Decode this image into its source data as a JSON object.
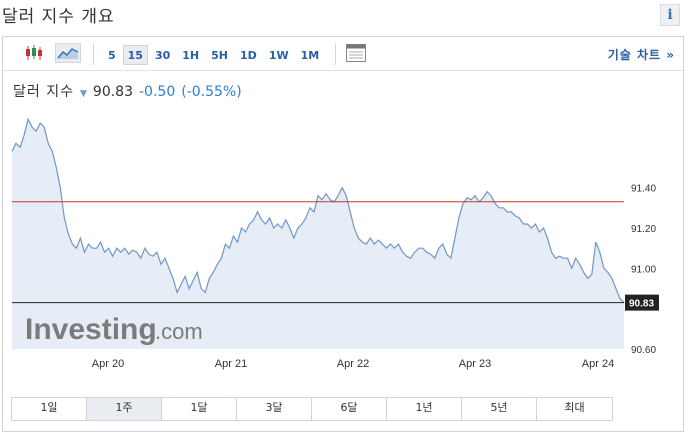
{
  "header": {
    "title": "달러 지수 개요",
    "info_label": "i"
  },
  "toolbar": {
    "chart_type_icons": [
      "candlestick-icon",
      "area-chart-icon"
    ],
    "intervals": [
      "5",
      "15",
      "30",
      "1H",
      "5H",
      "1D",
      "1W",
      "1M"
    ],
    "active_interval": "15",
    "calendar_icon": "calendar-icon",
    "tech_chart_link": "기술 차트 »"
  },
  "quote": {
    "name": "달러 지수",
    "price": "90.83",
    "change": "-0.50",
    "change_pct": "(-0.55%)"
  },
  "watermark": {
    "brand": "Investing",
    "suffix": ".com"
  },
  "chart_data": {
    "type": "area",
    "x_labels": [
      "Apr 20",
      "Apr 21",
      "Apr 22",
      "Apr 23",
      "Apr 24"
    ],
    "y_ticks": [
      "91.40",
      "91.20",
      "91.00",
      "90.60"
    ],
    "ylim": [
      90.6,
      91.8
    ],
    "last_value_label": "90.83",
    "last_value": 90.83,
    "reference_line": 91.33,
    "grid": false,
    "colors": {
      "line": "#6f97c8",
      "fill": "#e6edf6",
      "reference": "#c0392b",
      "last": "#222222"
    },
    "series": [
      {
        "values": [
          91.58,
          91.62,
          91.6,
          91.66,
          91.74,
          91.7,
          91.68,
          91.72,
          91.7,
          91.62,
          91.58,
          91.5,
          91.4,
          91.25,
          91.17,
          91.12,
          91.1,
          91.15,
          91.08,
          91.12,
          91.1,
          91.1,
          91.13,
          91.08,
          91.1,
          91.06,
          91.1,
          91.08,
          91.1,
          91.07,
          91.09,
          91.08,
          91.05,
          91.1,
          91.07,
          91.06,
          91.08,
          91.02,
          91.05,
          91.0,
          90.95,
          90.88,
          90.92,
          90.96,
          90.9,
          90.94,
          90.98,
          90.9,
          90.88,
          90.95,
          90.98,
          91.02,
          91.05,
          91.12,
          91.1,
          91.16,
          91.13,
          91.2,
          91.18,
          91.22,
          91.24,
          91.28,
          91.24,
          91.22,
          91.25,
          91.2,
          91.22,
          91.2,
          91.24,
          91.2,
          91.15,
          91.2,
          91.22,
          91.25,
          91.3,
          91.28,
          91.36,
          91.34,
          91.37,
          91.34,
          91.33,
          91.36,
          91.4,
          91.36,
          91.28,
          91.2,
          91.15,
          91.13,
          91.12,
          91.15,
          91.12,
          91.14,
          91.12,
          91.1,
          91.12,
          91.1,
          91.12,
          91.08,
          91.06,
          91.05,
          91.08,
          91.1,
          91.1,
          91.08,
          91.07,
          91.05,
          91.1,
          91.12,
          91.07,
          91.05,
          91.15,
          91.25,
          91.32,
          91.35,
          91.34,
          91.36,
          91.33,
          91.35,
          91.38,
          91.36,
          91.32,
          91.3,
          91.3,
          91.28,
          91.28,
          91.26,
          91.25,
          91.22,
          91.22,
          91.2,
          91.22,
          91.18,
          91.2,
          91.15,
          91.08,
          91.05,
          91.06,
          91.05,
          91.05,
          91.0,
          91.05,
          91.02,
          90.98,
          90.95,
          90.97,
          91.13,
          91.08,
          91.0,
          90.98,
          90.95,
          90.9,
          90.85,
          90.83
        ]
      }
    ]
  },
  "range_tabs": [
    "1일",
    "1주",
    "1달",
    "3달",
    "6달",
    "1년",
    "5년",
    "최대"
  ],
  "active_range": "1주"
}
